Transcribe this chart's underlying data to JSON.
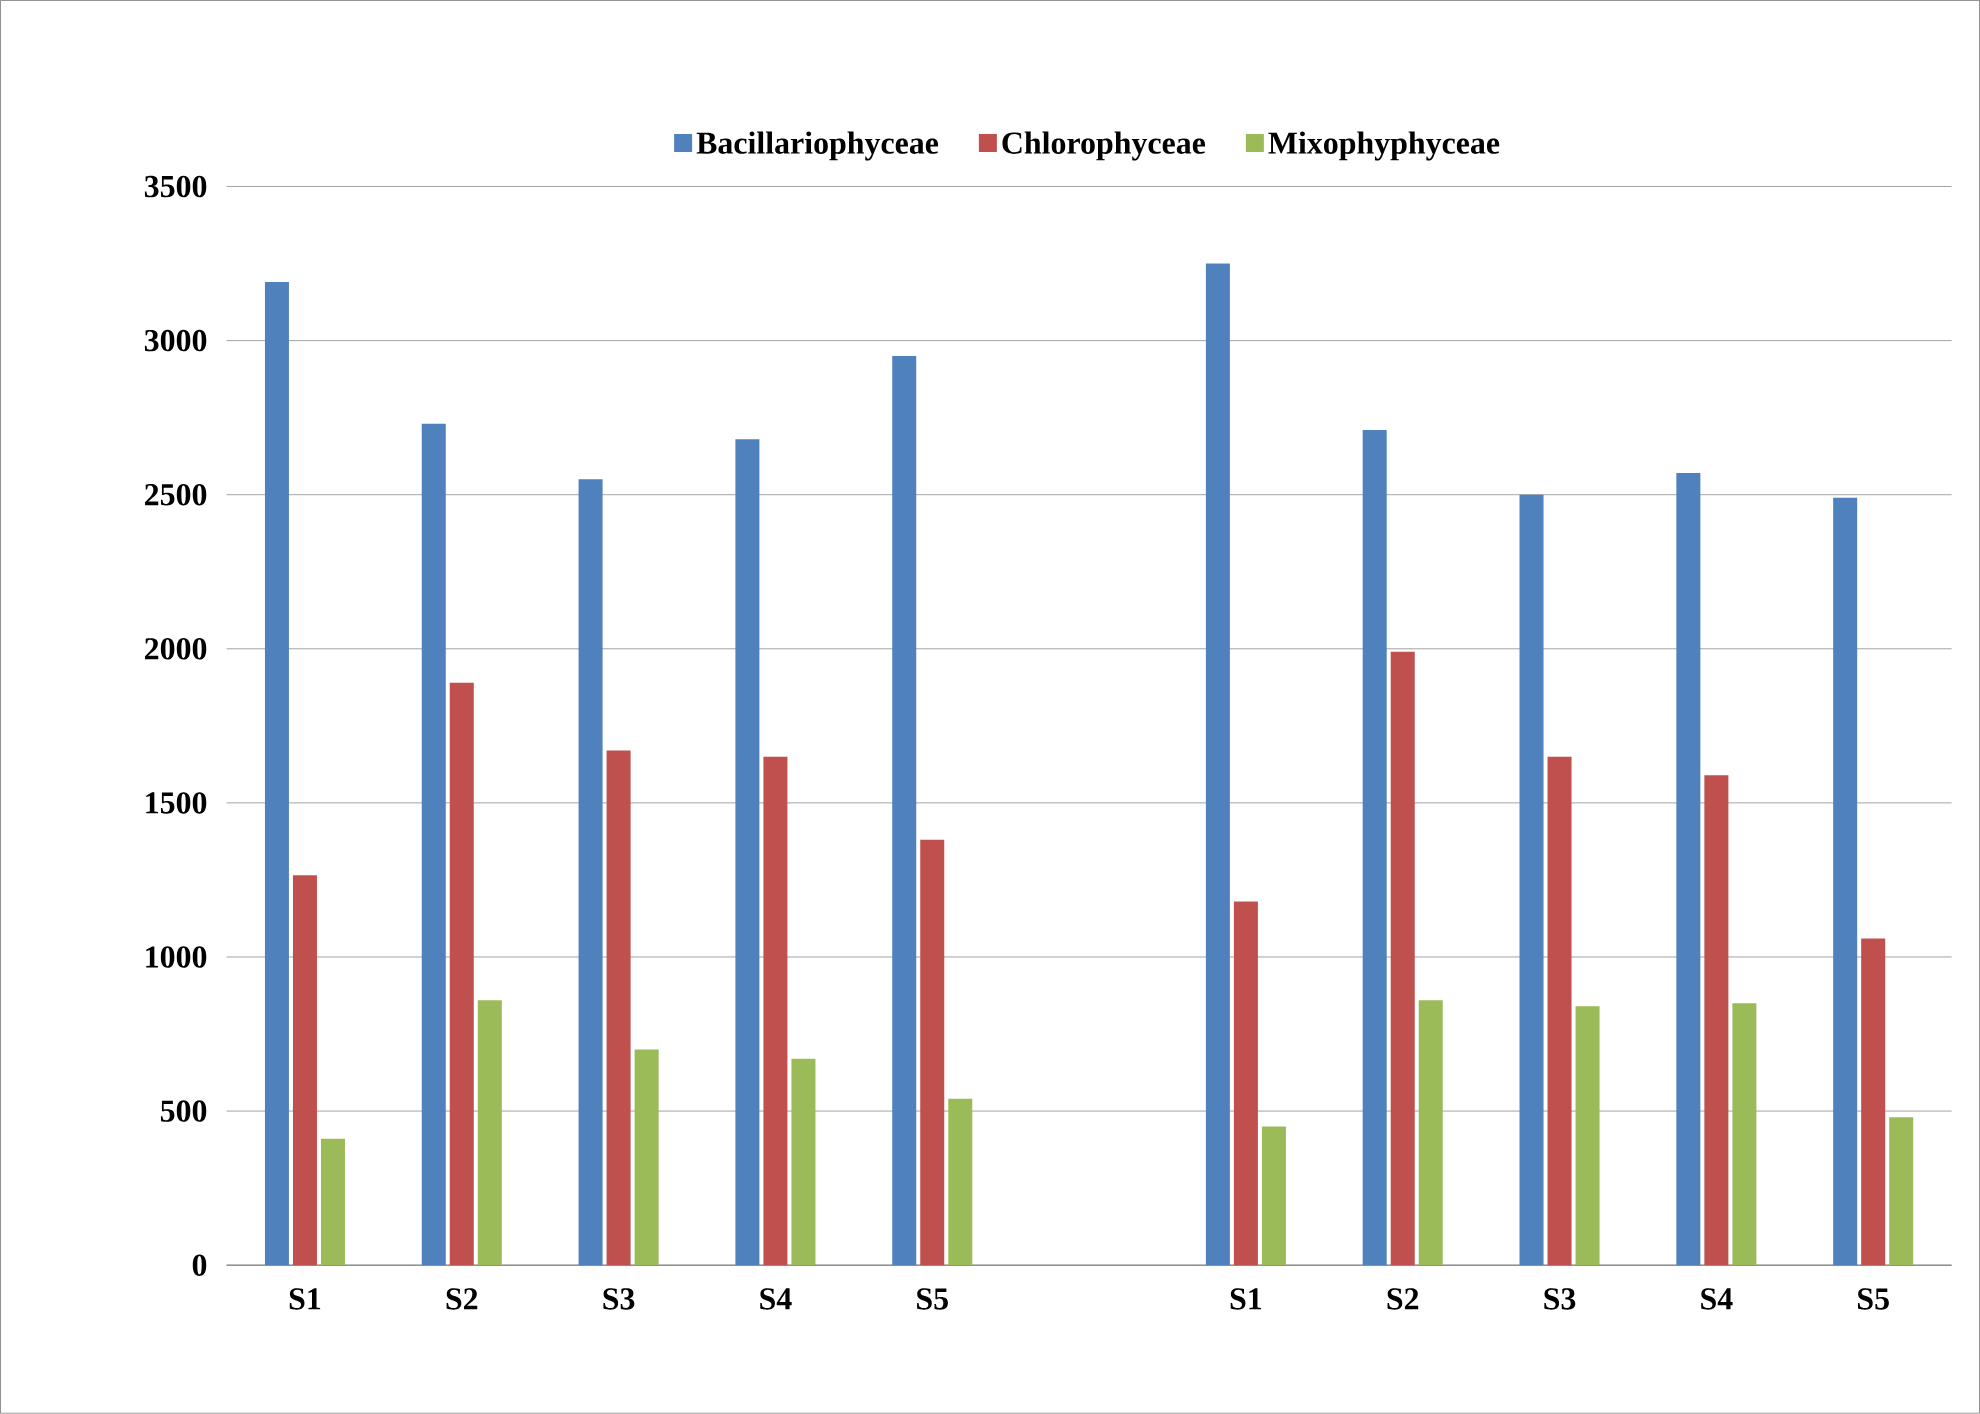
{
  "chart_data": {
    "type": "bar",
    "categories": [
      "S1",
      "S2",
      "S3",
      "S4",
      "S5",
      null,
      "S1",
      "S2",
      "S3",
      "S4",
      "S5"
    ],
    "series": [
      {
        "name": "Bacillariophyceae",
        "color": "#4f81bd",
        "values": [
          3190,
          2730,
          2550,
          2680,
          2950,
          null,
          3250,
          2710,
          2500,
          2570,
          2490
        ]
      },
      {
        "name": "Chlorophyceae",
        "color": "#c0504d",
        "values": [
          1265,
          1890,
          1670,
          1650,
          1380,
          null,
          1180,
          1990,
          1650,
          1590,
          1060
        ]
      },
      {
        "name": "Mixophyphyceae",
        "color": "#9bbb59",
        "values": [
          410,
          860,
          700,
          670,
          540,
          null,
          450,
          860,
          840,
          850,
          480
        ]
      }
    ],
    "ylim": [
      0,
      3500
    ],
    "yticks": [
      0,
      500,
      1000,
      1500,
      2000,
      2500,
      3000,
      3500
    ],
    "grid": "y",
    "legend": "top"
  }
}
